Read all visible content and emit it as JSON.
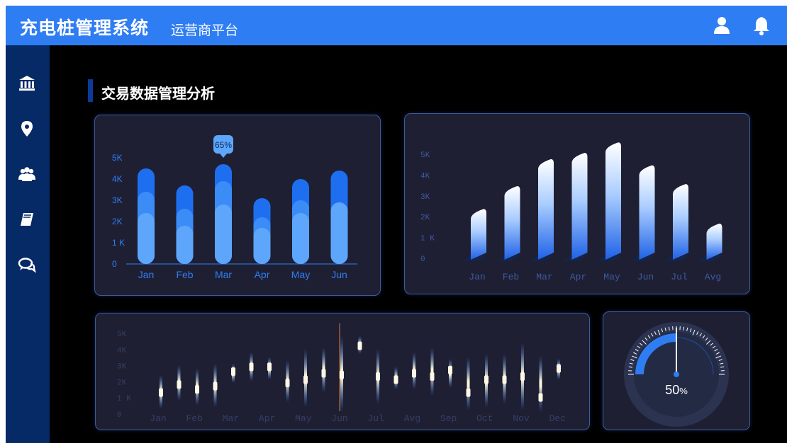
{
  "header": {
    "title": "充电桩管理系统",
    "subtitle": "运营商平台",
    "icons": [
      "user-icon",
      "bell-icon"
    ]
  },
  "sidebar": {
    "items": [
      {
        "icon": "bank-icon"
      },
      {
        "icon": "location-pin-icon"
      },
      {
        "icon": "users-icon"
      },
      {
        "icon": "book-icon"
      },
      {
        "icon": "chat-icon"
      }
    ]
  },
  "section": {
    "title": "交易数据管理分析"
  },
  "colors": {
    "accent": "#2f7df3",
    "panel": "#1f1f33",
    "sidebar": "#062a66"
  },
  "chart_data": [
    {
      "type": "bar",
      "categories": [
        "Jan",
        "Feb",
        "Mar",
        "Apr",
        "May",
        "Jun"
      ],
      "yticks": [
        "0",
        "1 K",
        "2K",
        "3K",
        "4K",
        "5K"
      ],
      "ylim": [
        0,
        5000
      ],
      "series": [
        {
          "values": [
            4500,
            3700,
            4700,
            3100,
            4000,
            4400
          ]
        },
        {
          "values": [
            3400,
            2600,
            3900,
            2200,
            3000,
            2900
          ]
        },
        {
          "values": [
            2400,
            1800,
            2800,
            1700,
            2400,
            2900
          ]
        }
      ],
      "tooltip": {
        "category": "Mar",
        "label": "65%"
      }
    },
    {
      "type": "bar",
      "categories": [
        "Jan",
        "Feb",
        "Mar",
        "Apr",
        "May",
        "Jun",
        "Jul",
        "Avg"
      ],
      "yticks": [
        "0",
        "1 K",
        "2K",
        "3K",
        "4K",
        "5K"
      ],
      "ylim": [
        0,
        5000
      ],
      "values": [
        2300,
        3400,
        4700,
        5000,
        5500,
        4400,
        3500,
        1600
      ]
    },
    {
      "type": "scatter",
      "categories": [
        "Jan",
        "Feb",
        "Mar",
        "Apr",
        "May",
        "Jun",
        "Jul",
        "Avg",
        "Sep",
        "Oct",
        "Nov",
        "Dec"
      ],
      "yticks": [
        "0",
        "1 K",
        "2K",
        "3K",
        "4K",
        "5K"
      ],
      "ylim": [
        0,
        5000
      ],
      "points": [
        {
          "value": 1500,
          "low": 500,
          "high": 2600
        },
        {
          "value": 2000,
          "low": 1000,
          "high": 3200
        },
        {
          "value": 1700,
          "low": 700,
          "high": 3000
        },
        {
          "value": 1900,
          "low": 600,
          "high": 3300
        },
        {
          "value": 2800,
          "low": 2100,
          "high": 3300
        },
        {
          "value": 3100,
          "low": 2200,
          "high": 4000
        },
        {
          "value": 3100,
          "low": 2300,
          "high": 3700
        },
        {
          "value": 2100,
          "low": 900,
          "high": 3500
        },
        {
          "value": 2300,
          "low": 600,
          "high": 4200
        },
        {
          "value": 2700,
          "low": 1500,
          "high": 4300
        },
        {
          "value": 2600,
          "low": 300,
          "high": 5000
        },
        {
          "value": 4400,
          "low": 3900,
          "high": 5000
        },
        {
          "value": 2500,
          "low": 800,
          "high": 4200
        },
        {
          "value": 2300,
          "low": 1700,
          "high": 3100
        },
        {
          "value": 2700,
          "low": 1700,
          "high": 4000
        },
        {
          "value": 2500,
          "low": 1300,
          "high": 4300
        },
        {
          "value": 2900,
          "low": 1800,
          "high": 3600
        },
        {
          "value": 1500,
          "low": 400,
          "high": 3700
        },
        {
          "value": 2300,
          "low": 600,
          "high": 3900
        },
        {
          "value": 2300,
          "low": 800,
          "high": 3900
        },
        {
          "value": 2500,
          "low": 400,
          "high": 4600
        },
        {
          "value": 1200,
          "low": 300,
          "high": 3800
        },
        {
          "value": 3000,
          "low": 2300,
          "high": 3600
        }
      ],
      "cursor": {
        "category": "Jun"
      }
    },
    {
      "type": "gauge",
      "value": 50,
      "label": "50",
      "unit": "%"
    }
  ]
}
